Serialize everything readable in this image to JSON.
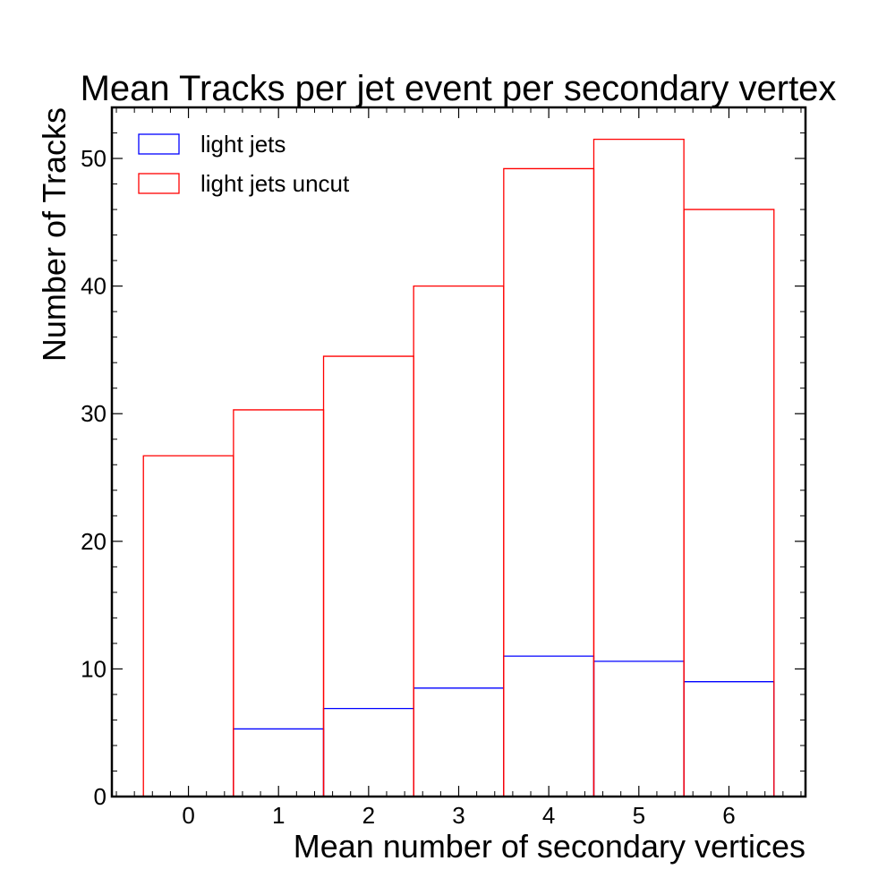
{
  "chart_data": {
    "type": "bar",
    "title": "Mean Tracks per jet event per secondary vertex",
    "xlabel": "Mean number of secondary vertices",
    "ylabel": "Number of Tracks",
    "categories": [
      "0",
      "1",
      "2",
      "3",
      "4",
      "5",
      "6"
    ],
    "x": [
      0,
      1,
      2,
      3,
      4,
      5,
      6
    ],
    "bin_edges": [
      -0.5,
      0.5,
      1.5,
      2.5,
      3.5,
      4.5,
      5.5,
      6.5
    ],
    "xlim": [
      -0.85,
      6.85
    ],
    "ylim": [
      0,
      54
    ],
    "x_ticks": [
      0,
      1,
      2,
      3,
      4,
      5,
      6
    ],
    "y_ticks": [
      0,
      10,
      20,
      30,
      40,
      50
    ],
    "grid": false,
    "legend_position": "top-left",
    "series": [
      {
        "name": "light jets",
        "color": "#0000ff",
        "values": [
          0,
          5.3,
          6.9,
          8.5,
          11.0,
          10.6,
          9.0
        ]
      },
      {
        "name": "light jets uncut",
        "color": "#ff0000",
        "values": [
          26.7,
          30.3,
          34.5,
          40.0,
          49.2,
          51.5,
          46.0
        ]
      }
    ]
  }
}
